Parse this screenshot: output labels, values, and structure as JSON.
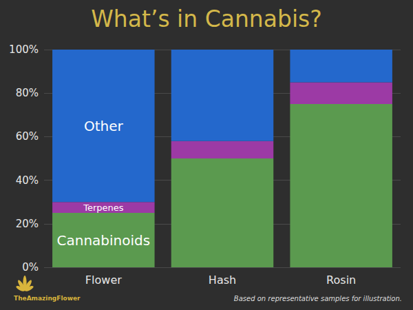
{
  "chart_data": {
    "type": "bar",
    "title": "What’s in Cannabis?",
    "categories": [
      "Flower",
      "Hash",
      "Rosin"
    ],
    "series": [
      {
        "name": "Cannabinoids",
        "color": "#5b9a4f",
        "values": [
          25,
          50,
          75
        ]
      },
      {
        "name": "Terpenes",
        "color": "#9c3aa5",
        "values": [
          5,
          8,
          10
        ]
      },
      {
        "name": "Other",
        "color": "#2468cc",
        "values": [
          70,
          42,
          15
        ]
      }
    ],
    "stacked": true,
    "ylim": [
      0,
      100
    ],
    "yticks": [
      {
        "value": 0,
        "label": "0%"
      },
      {
        "value": 20,
        "label": "20%"
      },
      {
        "value": 40,
        "label": "40%"
      },
      {
        "value": 60,
        "label": "60%"
      },
      {
        "value": 80,
        "label": "80%"
      },
      {
        "value": 100,
        "label": "100%"
      }
    ],
    "grid": true,
    "logo_text": "TheAmazingFlower",
    "caption": "Based on representative samples for illustration."
  }
}
